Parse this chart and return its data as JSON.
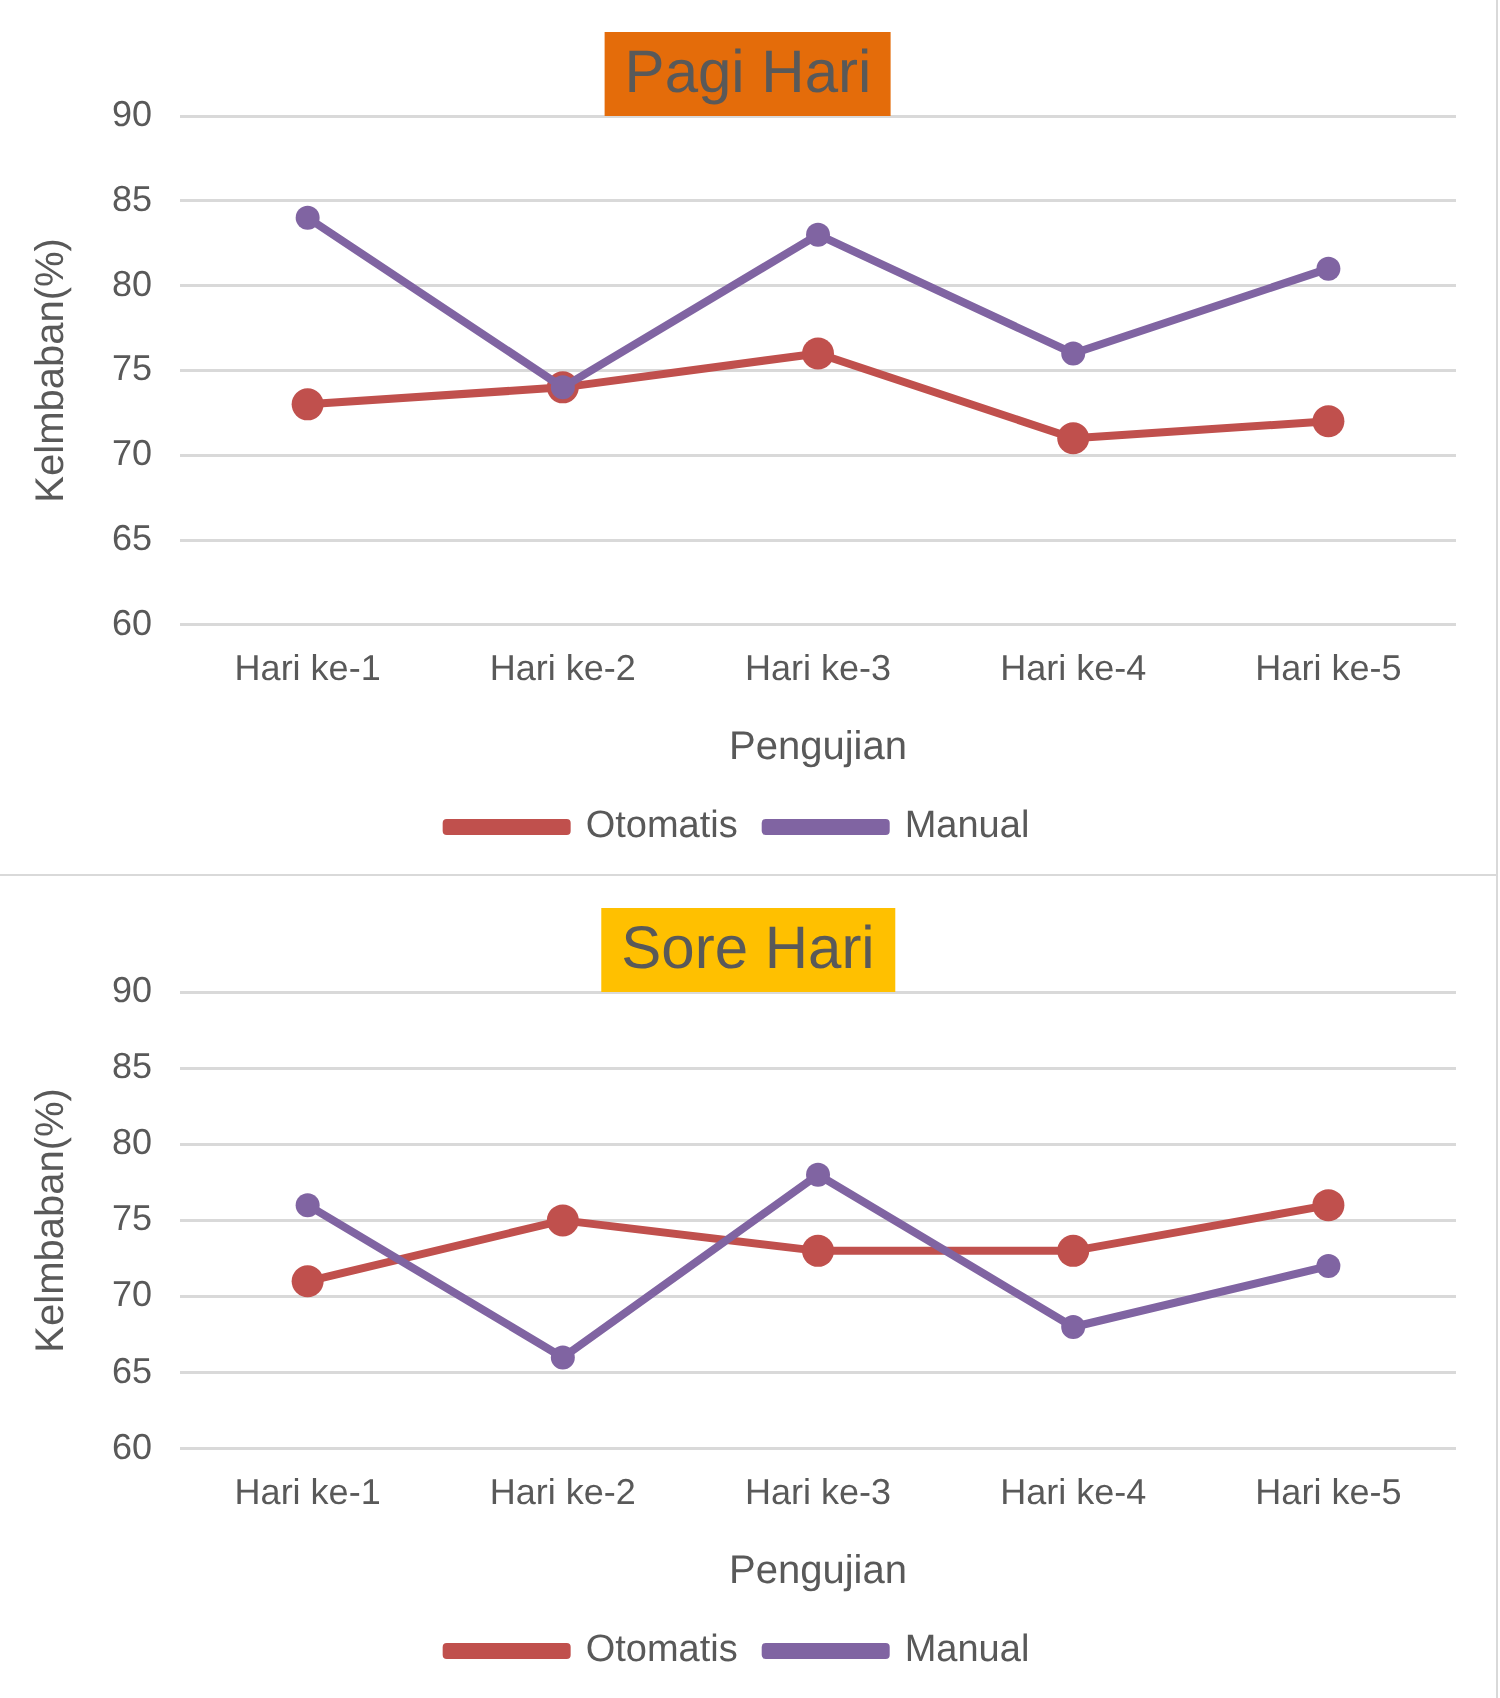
{
  "chart_data": [
    {
      "type": "line",
      "title": "Pagi Hari",
      "xlabel": "Pengujian",
      "ylabel": "Kelmbaban(%)",
      "categories": [
        "Hari ke-1",
        "Hari ke-2",
        "Hari ke-3",
        "Hari ke-4",
        "Hari ke-5"
      ],
      "series": [
        {
          "name": "Otomatis",
          "color": "#c0504d",
          "values": [
            73,
            74,
            76,
            71,
            72
          ]
        },
        {
          "name": "Manual",
          "color": "#8064a2",
          "values": [
            84,
            74,
            83,
            76,
            81
          ]
        }
      ],
      "ylim": [
        60,
        90
      ],
      "yticks": [
        60,
        65,
        70,
        75,
        80,
        85,
        90
      ],
      "grid": "y",
      "legend": "bottom",
      "marker": "circle",
      "line_style": "solid"
    },
    {
      "type": "line",
      "title": "Sore Hari",
      "xlabel": "Pengujian",
      "ylabel": "Kelmbaban(%)",
      "categories": [
        "Hari ke-1",
        "Hari ke-2",
        "Hari ke-3",
        "Hari ke-4",
        "Hari ke-5"
      ],
      "series": [
        {
          "name": "Otomatis",
          "color": "#c0504d",
          "values": [
            71,
            75,
            73,
            73,
            76
          ]
        },
        {
          "name": "Manual",
          "color": "#8064a2",
          "values": [
            76,
            66,
            78,
            68,
            72
          ]
        }
      ],
      "ylim": [
        60,
        90
      ],
      "yticks": [
        60,
        65,
        70,
        75,
        80,
        85,
        90
      ],
      "grid": "y",
      "legend": "bottom",
      "marker": "circle",
      "line_style": "solid"
    }
  ]
}
